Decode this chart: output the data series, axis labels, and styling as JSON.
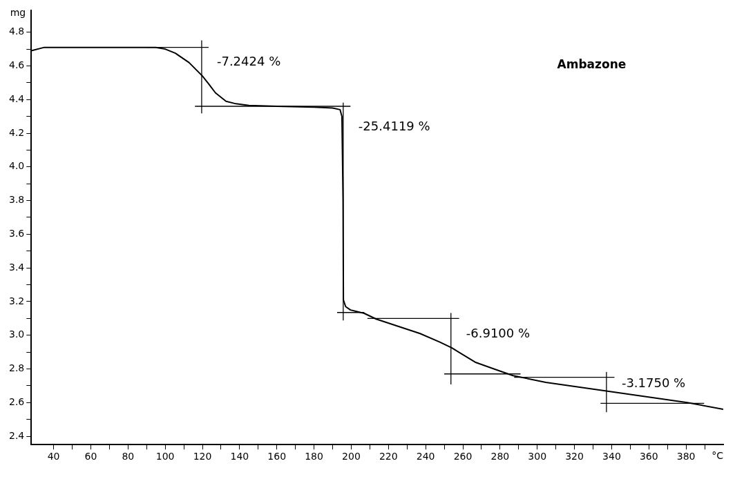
{
  "chart_data": {
    "type": "line",
    "title": "Ambazone",
    "xlabel": "°C",
    "ylabel": "mg",
    "xlim": [
      28,
      400
    ],
    "ylim": [
      2.35,
      4.93
    ],
    "xticks": [
      40,
      {
        "value": 50,
        "label": null
      },
      60,
      {
        "value": 70,
        "label": null
      },
      80,
      {
        "value": 90,
        "label": null
      },
      100,
      {
        "value": 110,
        "label": null
      },
      120,
      {
        "value": 130,
        "label": null
      },
      140,
      {
        "value": 150,
        "label": null
      },
      160,
      {
        "value": 170,
        "label": null
      },
      180,
      {
        "value": 190,
        "label": null
      },
      200,
      {
        "value": 210,
        "label": null
      },
      220,
      {
        "value": 230,
        "label": null
      },
      240,
      {
        "value": 250,
        "label": null
      },
      260,
      {
        "value": 270,
        "label": null
      },
      280,
      {
        "value": 290,
        "label": null
      },
      300,
      {
        "value": 310,
        "label": null
      },
      320,
      {
        "value": 330,
        "label": null
      },
      340,
      {
        "value": 350,
        "label": null
      },
      360,
      {
        "value": 370,
        "label": null
      },
      380,
      {
        "value": 390,
        "label": null
      }
    ],
    "yticks": [
      2.4,
      {
        "value": 2.5,
        "label": null
      },
      2.6,
      {
        "value": 2.7,
        "label": null
      },
      2.8,
      {
        "value": 2.9,
        "label": null
      },
      {
        "value": 3.0,
        "label": "3.0"
      },
      {
        "value": 3.1,
        "label": null
      },
      3.2,
      {
        "value": 3.3,
        "label": null
      },
      3.4,
      {
        "value": 3.5,
        "label": null
      },
      3.6,
      {
        "value": 3.7,
        "label": null
      },
      3.8,
      {
        "value": 3.9,
        "label": null
      },
      {
        "value": 4.0,
        "label": "4.0"
      },
      {
        "value": 4.1,
        "label": null
      },
      4.2,
      {
        "value": 4.3,
        "label": null
      },
      4.4,
      {
        "value": 4.5,
        "label": null
      },
      4.6,
      {
        "value": 4.7,
        "label": null
      },
      4.8
    ],
    "grid": false,
    "legend": false,
    "marker": "none",
    "line_style": "solid",
    "series": [
      {
        "color": "#000000",
        "x": [
          28,
          35,
          60,
          80,
          95,
          100,
          105.5,
          112.8,
          120,
          123.6,
          127,
          132.7,
          138,
          145,
          160,
          180,
          190,
          194,
          195,
          195.6,
          195.8,
          197,
          199.6,
          207,
          213.4,
          237,
          247.4,
          254,
          266.6,
          276.7,
          287,
          304.6,
          330,
          355.3,
          380.6,
          400
        ],
        "values": [
          4.69,
          4.71,
          4.71,
          4.71,
          4.71,
          4.7,
          4.675,
          4.62,
          4.54,
          4.49,
          4.44,
          4.39,
          4.375,
          4.365,
          4.36,
          4.355,
          4.35,
          4.34,
          4.3,
          3.8,
          3.21,
          3.17,
          3.15,
          3.13,
          3.096,
          3.01,
          2.96,
          2.925,
          2.84,
          2.8,
          2.76,
          2.72,
          2.68,
          2.64,
          2.6,
          2.56
        ]
      },
      {
        "color": "#000000",
        "x": [
          90,
          123.3
        ],
        "values": [
          4.71,
          4.71
        ]
      },
      {
        "color": "#000000",
        "x": [
          119.6,
          119.6
        ],
        "values": [
          4.75,
          4.32
        ]
      },
      {
        "color": "#000000",
        "x": [
          116,
          199.6
        ],
        "values": [
          4.36,
          4.36
        ]
      },
      {
        "color": "#000000",
        "x": [
          195.7,
          195.7
        ],
        "values": [
          4.38,
          3.09
        ]
      },
      {
        "color": "#000000",
        "x": [
          192.4,
          207
        ],
        "values": [
          3.135,
          3.135
        ]
      },
      {
        "color": "#000000",
        "x": [
          208.7,
          258
        ],
        "values": [
          3.1,
          3.1
        ]
      },
      {
        "color": "#000000",
        "x": [
          253.6,
          253.6
        ],
        "values": [
          3.13,
          2.71
        ]
      },
      {
        "color": "#000000",
        "x": [
          250,
          291
        ],
        "values": [
          2.77,
          2.77
        ]
      },
      {
        "color": "#000000",
        "x": [
          287.6,
          341.5
        ],
        "values": [
          2.75,
          2.75
        ]
      },
      {
        "color": "#000000",
        "x": [
          337.2,
          337.2
        ],
        "values": [
          2.78,
          2.545
        ]
      },
      {
        "color": "#000000",
        "x": [
          334,
          389.7
        ],
        "values": [
          2.595,
          2.595
        ]
      }
    ],
    "annotations": [
      "-7.2424 %",
      "-25.4119 %",
      "-6.9100 %",
      "-3.1750 %"
    ]
  }
}
